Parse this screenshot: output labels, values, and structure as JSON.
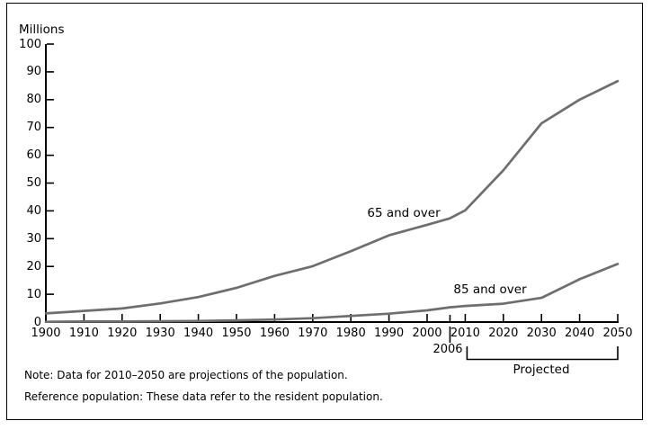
{
  "chart_data": {
    "type": "line",
    "unit_label": "Millions",
    "title": "",
    "xlabel": "",
    "ylabel": "Millions",
    "ylim": [
      0,
      100
    ],
    "grid": false,
    "line_color": "#6e6e6e",
    "axis_color": "#000000",
    "yticks": [
      0,
      10,
      20,
      30,
      40,
      50,
      60,
      70,
      80,
      90,
      100
    ],
    "xticks": [
      1900,
      1910,
      1920,
      1930,
      1940,
      1950,
      1960,
      1970,
      1980,
      1990,
      2000,
      2010,
      2020,
      2030,
      2040,
      2050
    ],
    "extra_xtick": 2006,
    "x": [
      1900,
      1910,
      1920,
      1930,
      1940,
      1950,
      1960,
      1970,
      1980,
      1990,
      2000,
      2006,
      2010,
      2020,
      2030,
      2040,
      2050
    ],
    "series": [
      {
        "name": "65 and over",
        "values": [
          3.1,
          4.0,
          4.9,
          6.7,
          9.0,
          12.3,
          16.6,
          20.1,
          25.5,
          31.2,
          35.0,
          37.3,
          40.2,
          54.6,
          71.5,
          80.0,
          86.7
        ]
      },
      {
        "name": "85 and over",
        "values": [
          0.1,
          0.2,
          0.2,
          0.3,
          0.4,
          0.6,
          0.9,
          1.4,
          2.2,
          3.0,
          4.2,
          5.3,
          5.8,
          6.6,
          8.7,
          15.4,
          20.9
        ]
      }
    ],
    "annotations": {
      "tick_2006": "2006",
      "projected": "Projected",
      "projected_range": [
        2010,
        2050
      ]
    }
  },
  "notes": {
    "note": "Note: Data for 2010–2050 are projections of the population.",
    "reference": "Reference population: These data refer to the resident population."
  }
}
